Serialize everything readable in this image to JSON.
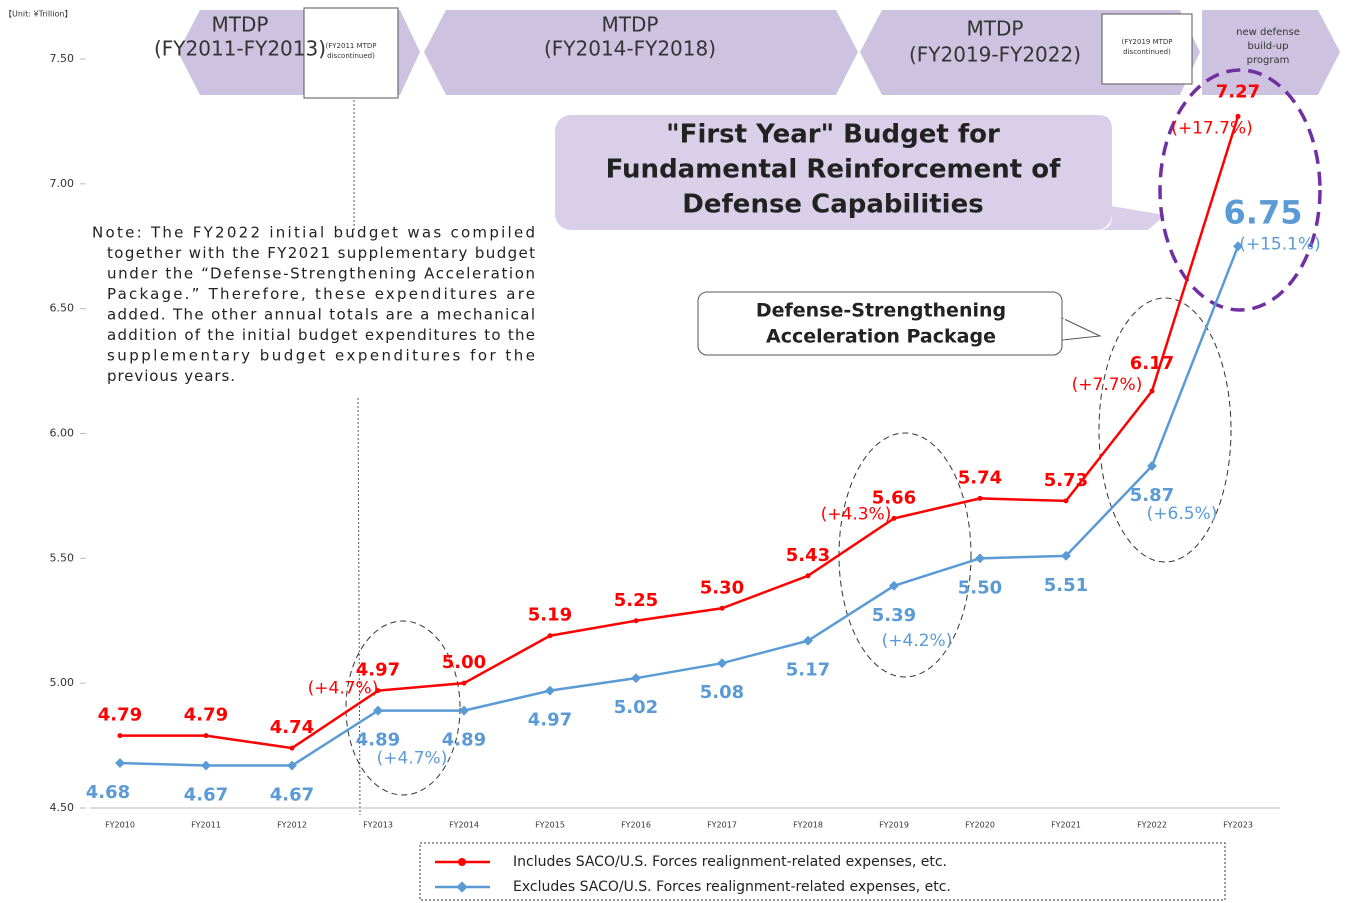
{
  "chart_data": {
    "type": "line",
    "unit_label": "【Unit: ¥Trillion】",
    "categories": [
      "FY2010",
      "FY2011",
      "FY2012",
      "FY2013",
      "FY2014",
      "FY2015",
      "FY2016",
      "FY2017",
      "FY2018",
      "FY2019",
      "FY2020",
      "FY2021",
      "FY2022",
      "FY2023"
    ],
    "ylim": [
      4.5,
      7.5
    ],
    "yticks": [
      {
        "value": 4.5,
        "label": "4.50"
      },
      {
        "value": 5,
        "label": "5.00"
      },
      {
        "value": 5.5,
        "label": "5.50"
      },
      {
        "value": 6,
        "label": "6.00"
      },
      {
        "value": 6.5,
        "label": "6.50"
      },
      {
        "value": 7,
        "label": "7.00"
      },
      {
        "value": 7.5,
        "label": "7.50"
      }
    ],
    "series": [
      {
        "name": "Includes SACO/U.S. Forces realignment-related expenses, etc.",
        "color": "#ff0000",
        "values": [
          4.79,
          4.79,
          4.74,
          4.97,
          5.0,
          5.19,
          5.25,
          5.3,
          5.43,
          5.66,
          5.74,
          5.73,
          6.17,
          7.27
        ],
        "value_labels": [
          "4.79",
          "4.79",
          "4.74",
          "4.97",
          "5.00",
          "5.19",
          "5.25",
          "5.30",
          "5.43",
          "5.66",
          "5.74",
          "5.73",
          "6.17",
          "7.27"
        ],
        "change_labels": [
          null,
          null,
          null,
          "(+4.7%)",
          null,
          null,
          null,
          null,
          null,
          "(+4.3%)",
          null,
          null,
          "(+7.7%)",
          "(+17.7%)"
        ]
      },
      {
        "name": "Excludes SACO/U.S. Forces realignment-related expenses, etc.",
        "color": "#5b9bd5",
        "values": [
          4.68,
          4.67,
          4.67,
          4.89,
          4.89,
          4.97,
          5.02,
          5.08,
          5.17,
          5.39,
          5.5,
          5.51,
          5.87,
          6.75
        ],
        "value_labels": [
          "4.68",
          "4.67",
          "4.67",
          "4.89",
          "4.89",
          "4.97",
          "5.02",
          "5.08",
          "5.17",
          "5.39",
          "5.50",
          "5.51",
          "5.87",
          "6.75"
        ],
        "change_labels": [
          null,
          null,
          null,
          "(+4.7%)",
          null,
          null,
          null,
          null,
          null,
          "(+4.2%)",
          null,
          null,
          "(+6.5%)",
          "(+15.1%)"
        ]
      }
    ],
    "banners": [
      {
        "lines": [
          "MTDP",
          "(FY2011-FY2013)"
        ]
      },
      {
        "lines": [
          "MTDP",
          "(FY2014-FY2018)"
        ]
      },
      {
        "lines": [
          "MTDP",
          "(FY2019-FY2022)"
        ]
      },
      {
        "lines": [
          "new defense",
          "build-up",
          "program"
        ]
      }
    ],
    "boxes": [
      {
        "lines": [
          "(FY2011 MTDP",
          "discontinued)"
        ]
      },
      {
        "lines": [
          "(FY2019 MTDP",
          "discontinued)"
        ]
      }
    ],
    "title_callout": [
      "\"First Year\" Budget for",
      "Fundamental Reinforcement of",
      "Defense Capabilities"
    ],
    "package_callout": [
      "Defense-Strengthening",
      "Acceleration Package"
    ],
    "note": [
      "Note: The FY2022 initial budget was compiled",
      "together with the FY2021 supplementary budget",
      "under the “Defense-Strengthening Acceleration",
      "Package.” Therefore, these expenditures are",
      "added.  The other annual totals are a mechanical",
      "addition of the initial budget expenditures to the",
      "supplementary budget expenditures for the",
      "previous years."
    ]
  }
}
